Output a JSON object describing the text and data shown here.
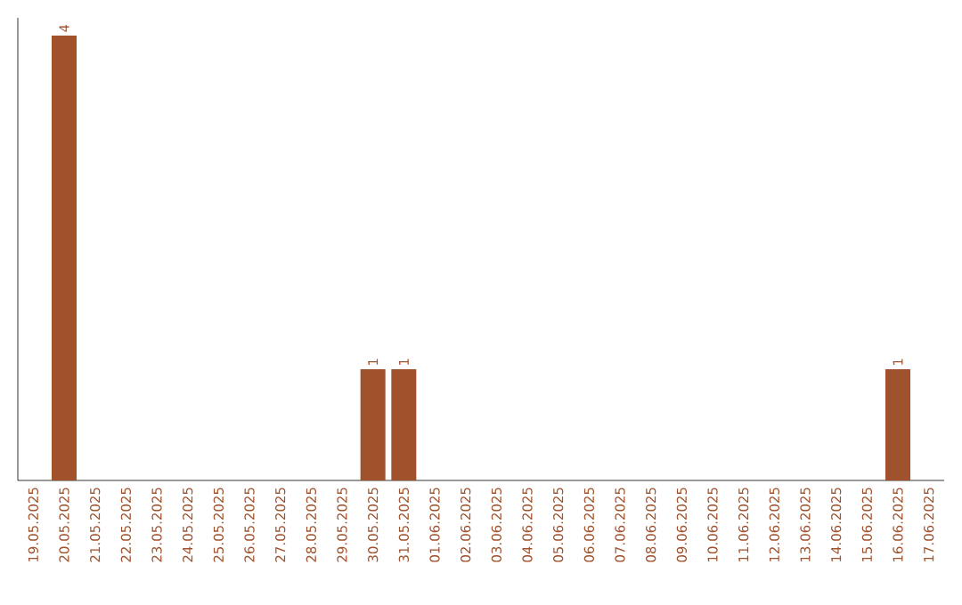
{
  "chart_data": {
    "type": "bar",
    "categories": [
      "19.05.2025",
      "20.05.2025",
      "21.05.2025",
      "22.05.2025",
      "23.05.2025",
      "24.05.2025",
      "25.05.2025",
      "26.05.2025",
      "27.05.2025",
      "28.05.2025",
      "29.05.2025",
      "30.05.2025",
      "31.05.2025",
      "01.06.2025",
      "02.06.2025",
      "03.06.2025",
      "04.06.2025",
      "05.06.2025",
      "06.06.2025",
      "07.06.2025",
      "08.06.2025",
      "09.06.2025",
      "10.06.2025",
      "11.06.2025",
      "12.06.2025",
      "13.06.2025",
      "14.06.2025",
      "15.06.2025",
      "16.06.2025",
      "17.06.2025"
    ],
    "values": [
      0,
      4,
      0,
      0,
      0,
      0,
      0,
      0,
      0,
      0,
      0,
      1,
      1,
      0,
      0,
      0,
      0,
      0,
      0,
      0,
      0,
      0,
      0,
      0,
      0,
      0,
      0,
      0,
      1,
      0
    ],
    "value_labels": [
      null,
      "4",
      null,
      null,
      null,
      null,
      null,
      null,
      null,
      null,
      null,
      "1",
      "1",
      null,
      null,
      null,
      null,
      null,
      null,
      null,
      null,
      null,
      null,
      null,
      null,
      null,
      null,
      null,
      "1",
      null
    ],
    "color": "#a0522d",
    "tick_labels": "x"
  }
}
